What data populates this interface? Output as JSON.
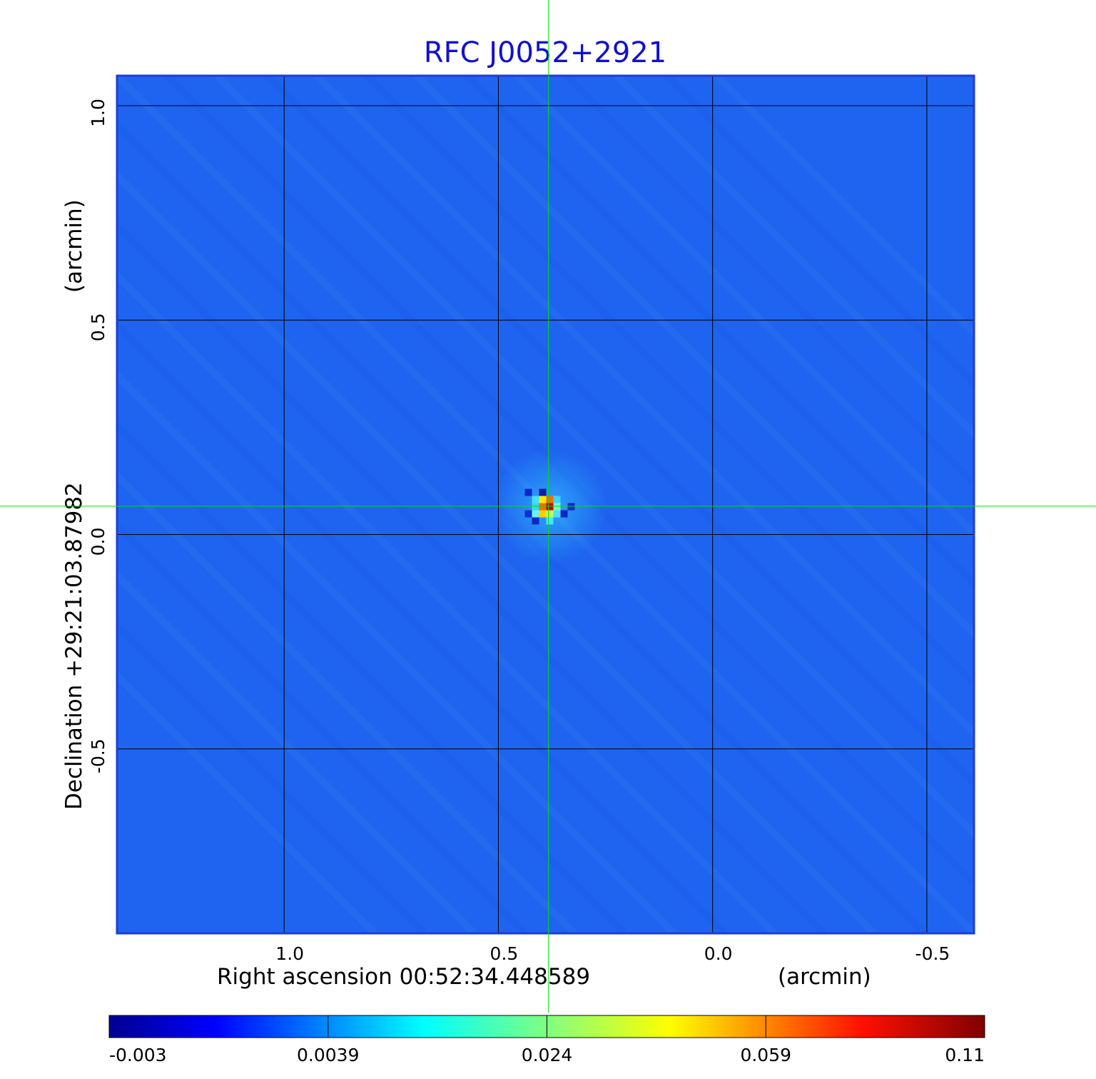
{
  "colors": {
    "title": "#1010d0",
    "background_map": "#1e64f0",
    "grid": "#000000",
    "crosshair": "#00e000",
    "frame": "#1e3cdc"
  },
  "chart_data": {
    "type": "heatmap",
    "title": "RFC J0052+2921",
    "xlabel": "Right ascension  00:52:34.448589",
    "xunit": "(arcmin)",
    "ylabel": "Declination  +29:21:03.87982",
    "yunit": "(arcmin)",
    "x_axis_reversed": true,
    "xlim": [
      1.39,
      -0.61
    ],
    "ylim": [
      -0.93,
      1.07
    ],
    "x_ticks": [
      {
        "value": 1.0,
        "label": "1.0"
      },
      {
        "value": 0.5,
        "label": "0.5"
      },
      {
        "value": 0.0,
        "label": "0.0"
      },
      {
        "value": -0.5,
        "label": "-0.5"
      }
    ],
    "y_ticks": [
      {
        "value": 1.0,
        "label": "1.0"
      },
      {
        "value": 0.5,
        "label": "0.5"
      },
      {
        "value": 0.0,
        "label": "0.0"
      },
      {
        "value": -0.5,
        "label": "-0.5"
      }
    ],
    "grid": true,
    "colormap": "jet",
    "colorbar": {
      "placement": "bottom",
      "tick_labels": [
        "-0.003",
        "0.0039",
        "0.024",
        "0.059",
        "0.11"
      ]
    },
    "peak": {
      "x": 0.38,
      "y": 0.065,
      "value": 0.11
    },
    "crosshair": {
      "x": 0.383,
      "y": 0.066
    }
  }
}
